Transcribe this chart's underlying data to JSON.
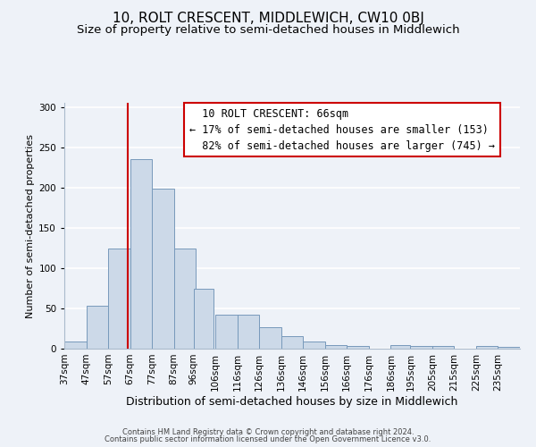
{
  "title": "10, ROLT CRESCENT, MIDDLEWICH, CW10 0BJ",
  "subtitle": "Size of property relative to semi-detached houses in Middlewich",
  "xlabel": "Distribution of semi-detached houses by size in Middlewich",
  "ylabel": "Number of semi-detached properties",
  "bar_color": "#ccd9e8",
  "bar_edge_color": "#7799bb",
  "background_color": "#eef2f8",
  "grid_color": "#ffffff",
  "bins": [
    "37sqm",
    "47sqm",
    "57sqm",
    "67sqm",
    "77sqm",
    "87sqm",
    "96sqm",
    "106sqm",
    "116sqm",
    "126sqm",
    "136sqm",
    "146sqm",
    "156sqm",
    "166sqm",
    "176sqm",
    "186sqm",
    "195sqm",
    "205sqm",
    "215sqm",
    "225sqm",
    "235sqm"
  ],
  "bin_left_edges": [
    37,
    47,
    57,
    67,
    77,
    87,
    96,
    106,
    116,
    126,
    136,
    146,
    156,
    166,
    176,
    186,
    195,
    205,
    215,
    225,
    235
  ],
  "bin_widths": [
    10,
    10,
    10,
    10,
    10,
    10,
    9,
    10,
    10,
    10,
    10,
    10,
    10,
    10,
    10,
    9,
    10,
    10,
    10,
    10,
    10
  ],
  "values": [
    9,
    53,
    124,
    235,
    199,
    124,
    74,
    42,
    42,
    27,
    15,
    9,
    4,
    3,
    0,
    4,
    3,
    3,
    0,
    3,
    2
  ],
  "property_size": 66,
  "property_label": "10 ROLT CRESCENT: 66sqm",
  "pct_smaller": 17,
  "count_smaller": 153,
  "pct_larger": 82,
  "count_larger": 745,
  "vline_color": "#cc0000",
  "annotation_box_edge_color": "#cc0000",
  "ylim": [
    0,
    305
  ],
  "yticks": [
    0,
    50,
    100,
    150,
    200,
    250,
    300
  ],
  "footer_line1": "Contains HM Land Registry data © Crown copyright and database right 2024.",
  "footer_line2": "Contains public sector information licensed under the Open Government Licence v3.0.",
  "title_fontsize": 11,
  "subtitle_fontsize": 9.5,
  "xlabel_fontsize": 9,
  "ylabel_fontsize": 8,
  "tick_fontsize": 7.5,
  "annotation_fontsize": 8.5,
  "footer_fontsize": 6
}
